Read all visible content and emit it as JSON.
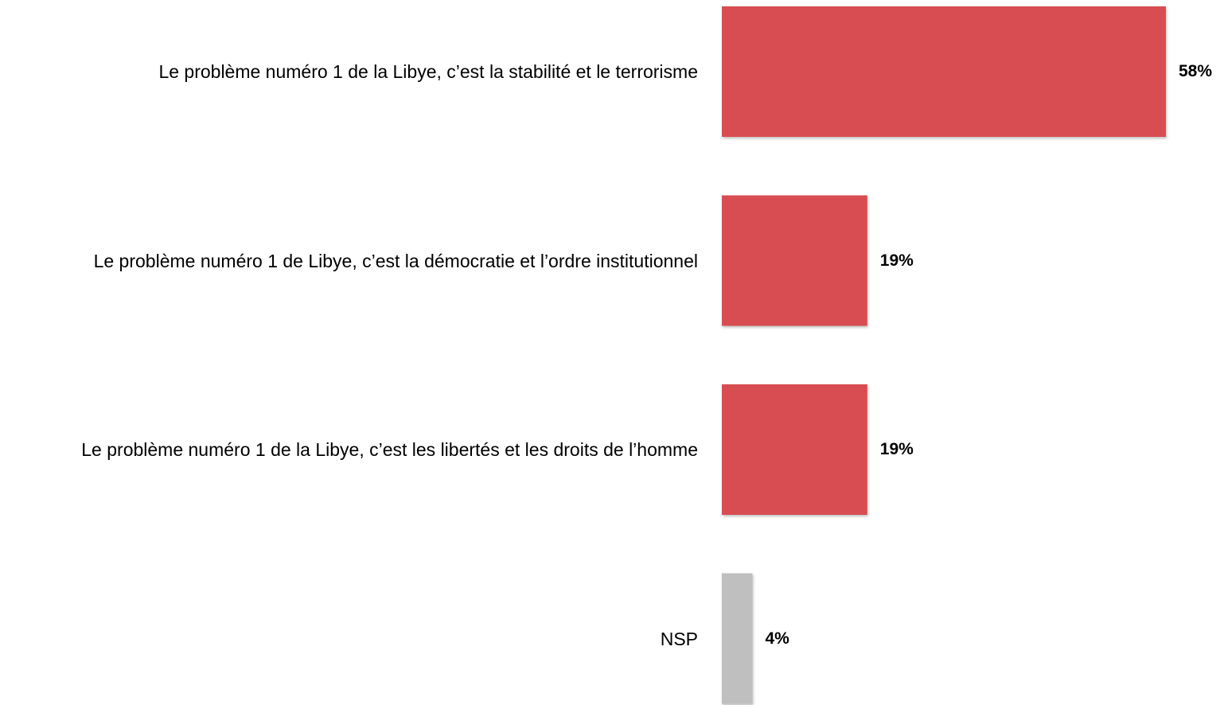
{
  "chart_data": {
    "type": "bar",
    "orientation": "horizontal",
    "categories": [
      "Le problème numéro 1 de la Libye, c’est la stabilité et le terrorisme",
      "Le problème numéro 1 de Libye, c’est la démocratie et l’ordre institutionnel",
      "Le problème numéro 1 de la Libye, c’est les libertés et les droits de l’homme",
      "NSP"
    ],
    "values": [
      58,
      19,
      19,
      4
    ],
    "value_labels": [
      "58%",
      "19%",
      "19%",
      "4%"
    ],
    "colors": [
      "#d84e51",
      "#d84e51",
      "#d84e51",
      "#bfbfbf"
    ]
  }
}
